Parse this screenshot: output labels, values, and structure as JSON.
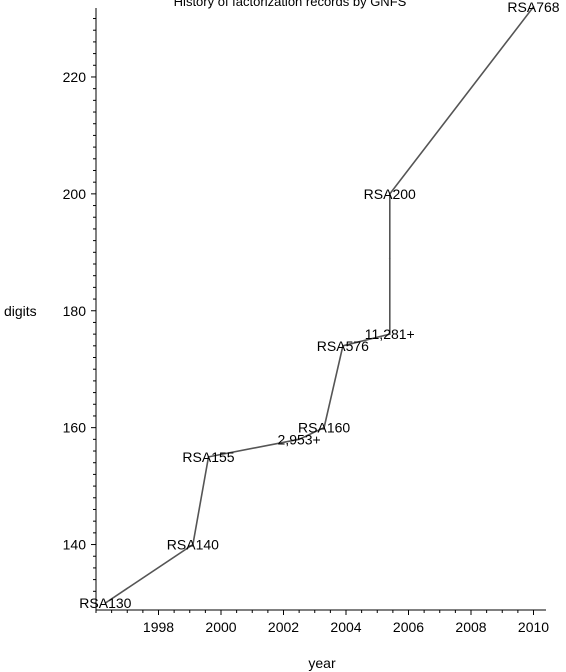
{
  "chart_data": {
    "type": "line",
    "title": "History of factorization records by GNFS",
    "xlabel": "year",
    "ylabel": "digits",
    "xlim": [
      1996,
      2010.4
    ],
    "ylim": [
      128.8,
      231.8
    ],
    "xticks": [
      1998,
      2000,
      2002,
      2004,
      2006,
      2008,
      2010
    ],
    "yticks": [
      140,
      160,
      180,
      200,
      220
    ],
    "x_minor_step": 0.5,
    "y_minor_step": 2,
    "grid": false,
    "line_color": "#555555",
    "series": [
      {
        "x": [
          1996.3,
          1999.1,
          1999.6,
          2002.5,
          2003.3,
          2003.9,
          2005.4,
          2005.4,
          2005.4,
          2010.0
        ],
        "y": [
          130,
          140,
          155,
          158,
          160,
          174,
          176,
          189,
          200,
          232
        ]
      }
    ],
    "annotations": [
      {
        "text": "RSA130",
        "x": 1996.3,
        "y": 130
      },
      {
        "text": "RSA140",
        "x": 1999.1,
        "y": 140
      },
      {
        "text": "RSA155",
        "x": 1999.6,
        "y": 155
      },
      {
        "text": "2,953+",
        "x": 2002.5,
        "y": 158
      },
      {
        "text": "RSA160",
        "x": 2003.3,
        "y": 160
      },
      {
        "text": "RSA576",
        "x": 2003.9,
        "y": 174
      },
      {
        "text": "11,281+",
        "x": 2005.4,
        "y": 176
      },
      {
        "text": "RSA200",
        "x": 2005.4,
        "y": 200
      },
      {
        "text": "RSA768",
        "x": 2010.0,
        "y": 232
      }
    ]
  }
}
